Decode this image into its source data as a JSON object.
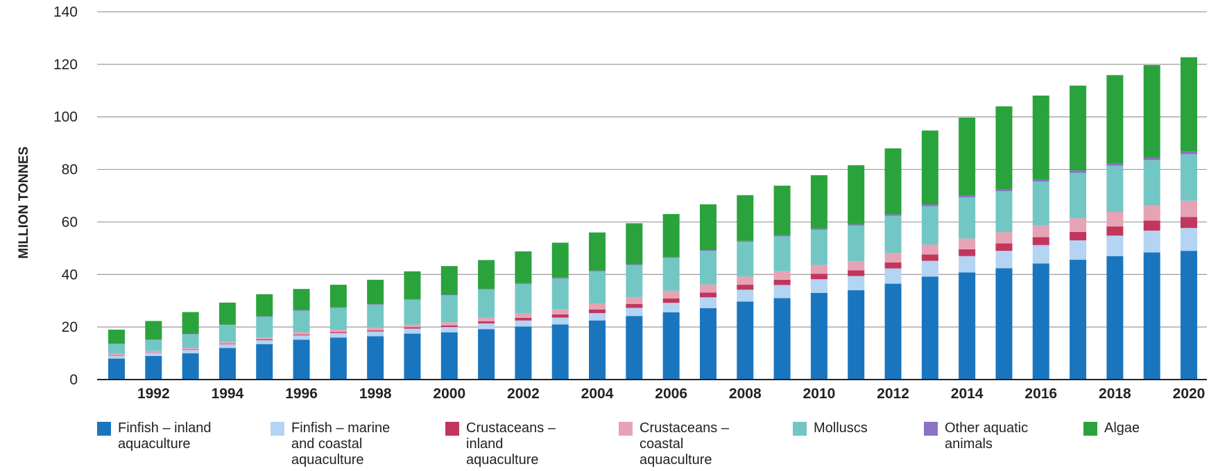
{
  "chart_data": {
    "type": "bar",
    "stacked": true,
    "title": "",
    "xlabel": "",
    "ylabel": "MILLION TONNES",
    "ylim": [
      0,
      140
    ],
    "yticks": [
      "0",
      "20",
      "40",
      "60",
      "80",
      "100",
      "120",
      "140"
    ],
    "grid": "horizontal",
    "legend_position": "bottom",
    "categories": [
      "1991",
      "1992",
      "1993",
      "1994",
      "1995",
      "1996",
      "1997",
      "1998",
      "1999",
      "2000",
      "2001",
      "2002",
      "2003",
      "2004",
      "2005",
      "2006",
      "2007",
      "2008",
      "2009",
      "2010",
      "2011",
      "2012",
      "2013",
      "2014",
      "2015",
      "2016",
      "2017",
      "2018",
      "2019",
      "2020"
    ],
    "tick_labels": [
      "1992",
      "1994",
      "1996",
      "1998",
      "2000",
      "2002",
      "2004",
      "2006",
      "2008",
      "2010",
      "2012",
      "2014",
      "2016",
      "2018",
      "2020"
    ],
    "series": [
      {
        "name": "Finfish – inland\naquaculture",
        "color": "#1a75bf",
        "values": [
          8,
          9,
          10,
          12,
          13.5,
          15.2,
          16,
          16.5,
          17.5,
          18,
          19.2,
          20.2,
          21,
          22.5,
          24.2,
          25.6,
          27.2,
          29.7,
          31,
          33,
          34,
          36.5,
          39.2,
          40.8,
          42.4,
          44.2,
          45.6,
          47,
          48.4,
          49
        ]
      },
      {
        "name": "Finfish – marine\nand coastal\naquaculture",
        "color": "#b3d4f2",
        "values": [
          1,
          1.2,
          1.3,
          1.4,
          1.5,
          1.6,
          1.7,
          1.8,
          1.9,
          2,
          2.2,
          2.3,
          2.6,
          2.8,
          3.1,
          3.6,
          4.1,
          4.5,
          5,
          5.2,
          5.4,
          5.8,
          6,
          6.2,
          6.6,
          7,
          7.4,
          7.8,
          8.3,
          8.7
        ]
      },
      {
        "name": "Crustaceans –\ninland\naquaculture",
        "color": "#c2365e",
        "values": [
          0.1,
          0.1,
          0.2,
          0.2,
          0.3,
          0.3,
          0.4,
          0.4,
          0.5,
          0.6,
          0.8,
          1,
          1.2,
          1.4,
          1.5,
          1.7,
          1.8,
          1.9,
          2,
          2.1,
          2.2,
          2.3,
          2.4,
          2.6,
          2.8,
          3,
          3.2,
          3.5,
          3.8,
          4.2
        ]
      },
      {
        "name": "Crustaceans –\ncoastal\naquaculture",
        "color": "#e6a3b6",
        "values": [
          0.7,
          0.6,
          0.6,
          0.7,
          0.8,
          0.9,
          0.9,
          1,
          1,
          1.2,
          1.4,
          1.7,
          2,
          2.3,
          2.6,
          2.9,
          3.1,
          3.1,
          3.2,
          3.3,
          3.4,
          3.6,
          3.8,
          4.1,
          4.3,
          4.6,
          5.2,
          5.5,
          5.8,
          6.2
        ]
      },
      {
        "name": "Molluscs",
        "color": "#72c7c4",
        "values": [
          3.8,
          4.2,
          5.2,
          6.5,
          7.8,
          8.2,
          8.3,
          8.8,
          9.5,
          10.3,
          10.7,
          11.2,
          11.7,
          12.2,
          12.2,
          12.5,
          12.8,
          13.2,
          13.3,
          13.4,
          13.6,
          14.1,
          14.6,
          15.6,
          15.6,
          16.6,
          17.3,
          17.6,
          17.2,
          17.7
        ]
      },
      {
        "name": "Other aquatic\nanimals",
        "color": "#8a73c4",
        "values": [
          0.1,
          0.1,
          0.1,
          0.1,
          0.2,
          0.2,
          0.2,
          0.2,
          0.2,
          0.2,
          0.2,
          0.3,
          0.3,
          0.3,
          0.3,
          0.3,
          0.3,
          0.4,
          0.5,
          0.5,
          0.5,
          0.6,
          0.7,
          0.8,
          0.8,
          0.8,
          0.9,
          1,
          1,
          1
        ]
      },
      {
        "name": "Algae",
        "color": "#2aa33c",
        "values": [
          5.3,
          7.1,
          8.3,
          8.4,
          8.4,
          8.1,
          8.6,
          9.3,
          10.6,
          10.9,
          11,
          12.1,
          13.3,
          14.5,
          15.6,
          16.4,
          17.4,
          17.4,
          18.8,
          20.3,
          22.5,
          25.1,
          28.1,
          29.6,
          31.5,
          31.9,
          32.3,
          33.5,
          35.2,
          35.9
        ]
      }
    ]
  }
}
